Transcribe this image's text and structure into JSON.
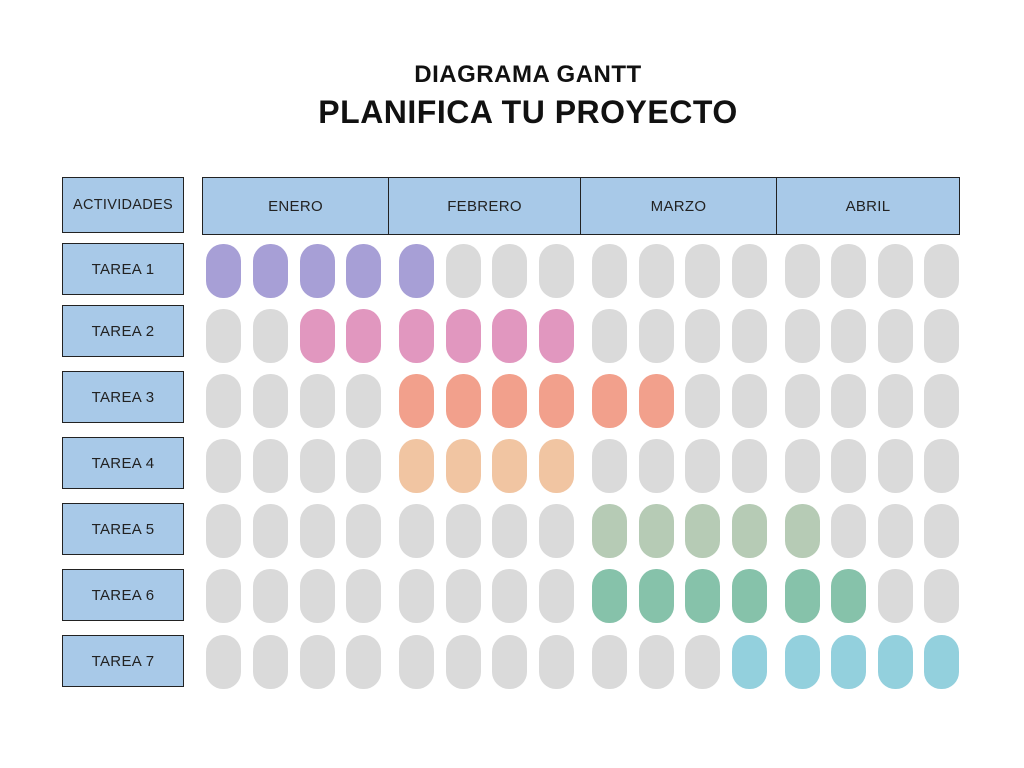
{
  "title": {
    "subtitle": "DIAGRAMA GANTT",
    "main": "PLANIFICA TU PROYECTO"
  },
  "header": {
    "activities": "ACTIVIDADES",
    "months": [
      "ENERO",
      "FEBRERO",
      "MARZO",
      "ABRIL"
    ]
  },
  "weeks_per_month": 4,
  "empty_color": "#dadada",
  "tasks": [
    {
      "label": "TAREA 1",
      "start_week": 1,
      "end_week": 5,
      "color": "#a79fd6"
    },
    {
      "label": "TAREA 2",
      "start_week": 3,
      "end_week": 8,
      "color": "#e197bf"
    },
    {
      "label": "TAREA 3",
      "start_week": 5,
      "end_week": 10,
      "color": "#f2a08c"
    },
    {
      "label": "TAREA 4",
      "start_week": 5,
      "end_week": 8,
      "color": "#f1c5a2"
    },
    {
      "label": "TAREA 5",
      "start_week": 9,
      "end_week": 13,
      "color": "#b6cbb5"
    },
    {
      "label": "TAREA 6",
      "start_week": 9,
      "end_week": 14,
      "color": "#86c2aa"
    },
    {
      "label": "TAREA 7",
      "start_week": 12,
      "end_week": 16,
      "color": "#93d0dd"
    }
  ]
}
